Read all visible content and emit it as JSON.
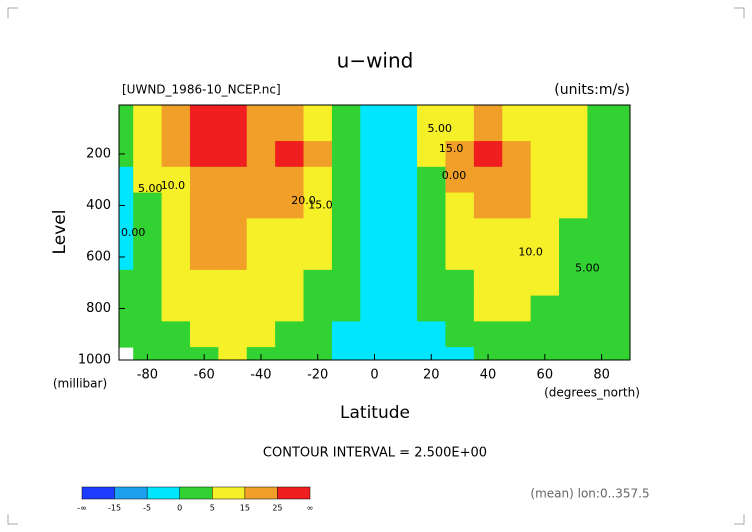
{
  "chart_data": {
    "type": "contour",
    "title": "u−wind",
    "subtitle_left": "[UWND_1986-10_NCEP.nc]",
    "subtitle_right": "(units:m/s)",
    "y_label": "Level",
    "y_unit": "(millibar)",
    "x_label": "Latitude",
    "x_unit": "(degrees_north)",
    "footer": "CONTOUR INTERVAL = 2.500E+00",
    "note": "(mean) lon:0..357.5",
    "xlim": [
      -90,
      90
    ],
    "xticks": [
      -80,
      -60,
      -40,
      -20,
      0,
      20,
      40,
      60,
      80
    ],
    "ylim": [
      1000,
      10
    ],
    "yticks": [
      200,
      400,
      600,
      800,
      1000
    ],
    "x": [
      -90,
      -80,
      -70,
      -60,
      -50,
      -40,
      -30,
      -20,
      -10,
      0,
      10,
      20,
      30,
      40,
      50,
      60,
      70,
      80,
      90
    ],
    "y": [
      100,
      200,
      300,
      400,
      500,
      600,
      700,
      800,
      900,
      1000
    ],
    "z": [
      [
        3,
        8,
        22,
        32,
        30,
        18,
        15,
        8,
        2,
        -3,
        -2,
        5,
        12,
        15,
        14,
        10,
        6,
        4,
        3
      ],
      [
        2,
        6,
        18,
        30,
        27,
        22,
        30,
        18,
        3,
        -2,
        -3,
        6,
        22,
        27,
        20,
        14,
        8,
        4,
        3
      ],
      [
        -1,
        5,
        14,
        24,
        22,
        22,
        24,
        14,
        2,
        -2,
        -4,
        3,
        16,
        20,
        18,
        12,
        6,
        3,
        2
      ],
      [
        -2,
        4,
        12,
        20,
        19,
        18,
        16,
        10,
        1,
        -2,
        -3,
        2,
        12,
        16,
        15,
        10,
        5,
        3,
        2
      ],
      [
        -2,
        3,
        10,
        17,
        17,
        14,
        12,
        7,
        1,
        -1,
        -2,
        1,
        8,
        13,
        12,
        8,
        4,
        3,
        2
      ],
      [
        -1,
        3,
        8,
        16,
        15,
        12,
        9,
        5,
        1,
        -1,
        -2,
        1,
        6,
        10,
        9,
        6,
        3,
        3,
        2
      ],
      [
        0,
        3,
        7,
        14,
        12,
        10,
        7,
        4,
        0,
        -1,
        -2,
        0,
        4,
        8,
        8,
        5,
        3,
        2,
        2
      ],
      [
        1,
        2,
        6,
        10,
        10,
        8,
        6,
        3,
        0,
        -1,
        -2,
        0,
        3,
        6,
        6,
        4,
        2,
        2,
        2
      ],
      [
        2,
        2,
        4,
        7,
        8,
        6,
        4,
        2,
        -1,
        -2,
        -2,
        -1,
        1,
        3,
        4,
        3,
        2,
        1,
        1
      ],
      [
        null,
        1,
        2,
        4,
        6,
        4,
        2,
        1,
        -3,
        -3,
        -2,
        -3,
        -1,
        1,
        3,
        2,
        1,
        1,
        1
      ]
    ],
    "levels": [
      -15,
      -5,
      0,
      5,
      15,
      25
    ],
    "colors": [
      "#1e3cff",
      "#1ea0f0",
      "#00e6ff",
      "#32d232",
      "#f5f028",
      "#f0a028",
      "#f01e1e"
    ],
    "low_label": "-∞",
    "high_label": "∞",
    "annotations": [
      {
        "text": "5.00",
        "x": -79,
        "y": 336
      },
      {
        "text": "10.0",
        "x": -71,
        "y": 324
      },
      {
        "text": "0.00",
        "x": -85,
        "y": 506
      },
      {
        "text": "20.0",
        "x": -25,
        "y": 382
      },
      {
        "text": "15.0",
        "x": -19,
        "y": 401
      },
      {
        "text": "5.00",
        "x": 23,
        "y": 104
      },
      {
        "text": "15.0",
        "x": 27,
        "y": 181
      },
      {
        "text": "0.00",
        "x": 28,
        "y": 286
      },
      {
        "text": "10.0",
        "x": 55,
        "y": 583
      },
      {
        "text": "5.00",
        "x": 75,
        "y": 645
      }
    ]
  }
}
